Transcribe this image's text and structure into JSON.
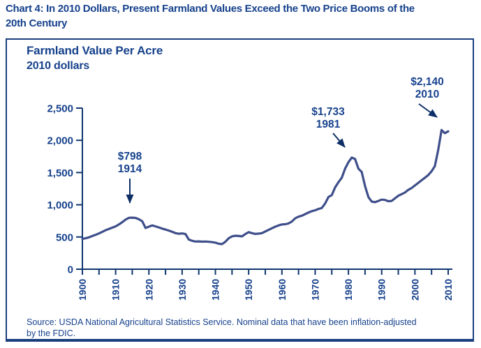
{
  "page": {
    "title_line1": "Chart 4:  In 2010 Dollars, Present Farmland Values Exceed the Two Price Booms of the",
    "title_line2": "20th Century"
  },
  "chart": {
    "heading_line1": "Farmland Value Per Acre",
    "heading_line2": "2010 dollars",
    "source_line1": "Source: USDA National Agricultural Statistics Service. Nominal data that have been inflation-adjusted",
    "source_line2": "by the FDIC."
  },
  "colors": {
    "text_navy": "#16418c",
    "border_navy": "#1a3f7e",
    "axis_navy": "#0f356f",
    "curve_blue": "#3e4e8a",
    "arrow_navy": "#0d2f66"
  },
  "chart_data": {
    "type": "line",
    "title": "Farmland Value Per Acre",
    "subtitle": "2010 dollars",
    "xlabel": "",
    "ylabel": "",
    "grid": false,
    "legend": "none",
    "xlim": [
      1900,
      2010
    ],
    "ylim": [
      0,
      2500
    ],
    "y_ticks": [
      0,
      500,
      1000,
      1500,
      2000,
      2500
    ],
    "x_ticks_labeled": [
      1900,
      1910,
      1920,
      1930,
      1940,
      1950,
      1960,
      1970,
      1980,
      1990,
      2000,
      2010
    ],
    "x_minor_tick_step": 5,
    "series_name": "Farmland value per acre, 2010 dollars",
    "x": [
      1900,
      1901,
      1902,
      1903,
      1904,
      1905,
      1906,
      1907,
      1908,
      1909,
      1910,
      1911,
      1912,
      1913,
      1914,
      1915,
      1916,
      1917,
      1918,
      1919,
      1920,
      1921,
      1922,
      1923,
      1924,
      1925,
      1926,
      1927,
      1928,
      1929,
      1930,
      1931,
      1932,
      1933,
      1934,
      1935,
      1936,
      1937,
      1938,
      1939,
      1940,
      1941,
      1942,
      1943,
      1944,
      1945,
      1946,
      1947,
      1948,
      1949,
      1950,
      1951,
      1952,
      1953,
      1954,
      1955,
      1956,
      1957,
      1958,
      1959,
      1960,
      1961,
      1962,
      1963,
      1964,
      1965,
      1966,
      1967,
      1968,
      1969,
      1970,
      1971,
      1972,
      1973,
      1974,
      1975,
      1976,
      1977,
      1978,
      1979,
      1980,
      1981,
      1982,
      1983,
      1984,
      1985,
      1986,
      1987,
      1988,
      1989,
      1990,
      1991,
      1992,
      1993,
      1994,
      1995,
      1996,
      1997,
      1998,
      1999,
      2000,
      2001,
      2002,
      2003,
      2004,
      2005,
      2006,
      2007,
      2008,
      2009,
      2010
    ],
    "values": [
      470,
      480,
      495,
      515,
      535,
      555,
      580,
      605,
      625,
      645,
      665,
      695,
      730,
      770,
      798,
      800,
      795,
      775,
      745,
      640,
      660,
      680,
      665,
      648,
      630,
      615,
      600,
      580,
      560,
      550,
      555,
      545,
      460,
      440,
      430,
      432,
      428,
      430,
      425,
      420,
      412,
      395,
      390,
      425,
      480,
      510,
      520,
      515,
      510,
      545,
      575,
      560,
      548,
      552,
      560,
      585,
      610,
      635,
      660,
      680,
      695,
      698,
      710,
      740,
      790,
      815,
      830,
      855,
      880,
      900,
      915,
      935,
      950,
      1020,
      1120,
      1150,
      1270,
      1350,
      1420,
      1560,
      1660,
      1733,
      1710,
      1560,
      1510,
      1290,
      1120,
      1050,
      1040,
      1060,
      1080,
      1075,
      1055,
      1060,
      1100,
      1140,
      1165,
      1190,
      1230,
      1260,
      1300,
      1340,
      1380,
      1420,
      1460,
      1520,
      1600,
      1850,
      2160,
      2110,
      2140
    ],
    "annotations": [
      {
        "value_label": "$798",
        "year_label": "1914",
        "year": 1914,
        "value": 798
      },
      {
        "value_label": "$1,733",
        "year_label": "1981",
        "year": 1981,
        "value": 1733
      },
      {
        "value_label": "$2,140",
        "year_label": "2010",
        "year": 2010,
        "value": 2140
      }
    ]
  }
}
